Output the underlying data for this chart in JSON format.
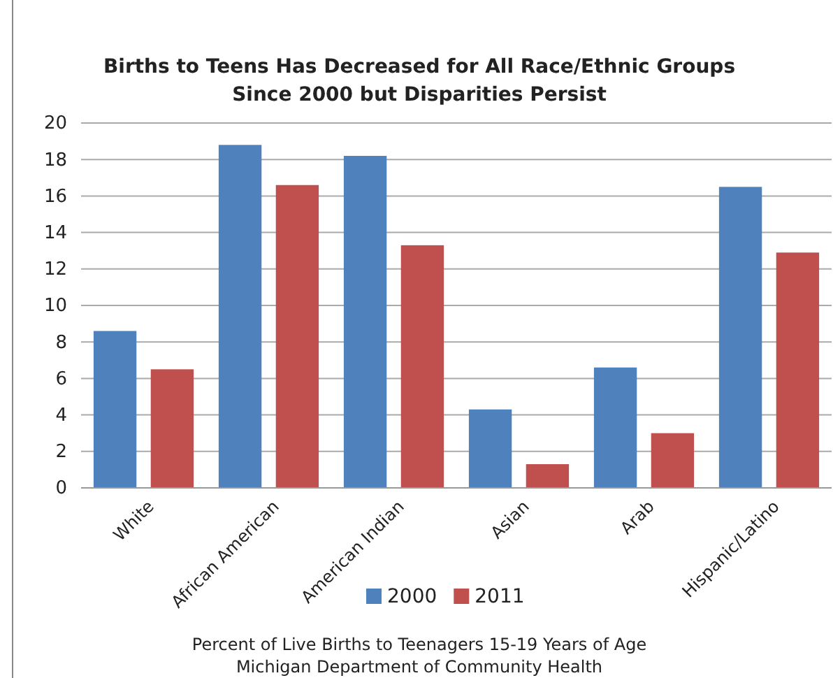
{
  "chart_data": {
    "type": "bar",
    "title": "Births to Teens Has Decreased for All Race/Ethnic Groups\nSince 2000 but Disparities Persist",
    "xlabel": "Percent of Live Births to Teenagers 15-19 Years of Age",
    "annotations": [
      "Michigan Department of Community Health"
    ],
    "categories": [
      "White",
      "African American",
      "American Indian",
      "Asian",
      "Arab",
      "Hispanic/Latino"
    ],
    "series": [
      {
        "name": "2000",
        "color": "#4f81bd",
        "values": [
          8.6,
          18.8,
          18.2,
          4.3,
          6.6,
          16.5
        ]
      },
      {
        "name": "2011",
        "color": "#c0504d",
        "values": [
          6.5,
          16.6,
          13.3,
          1.3,
          3.0,
          12.9
        ]
      }
    ],
    "ylim": [
      0,
      20
    ],
    "yticks": [
      0,
      2,
      4,
      6,
      8,
      10,
      12,
      14,
      16,
      18,
      20
    ],
    "grid": true,
    "legend": "bottom"
  }
}
